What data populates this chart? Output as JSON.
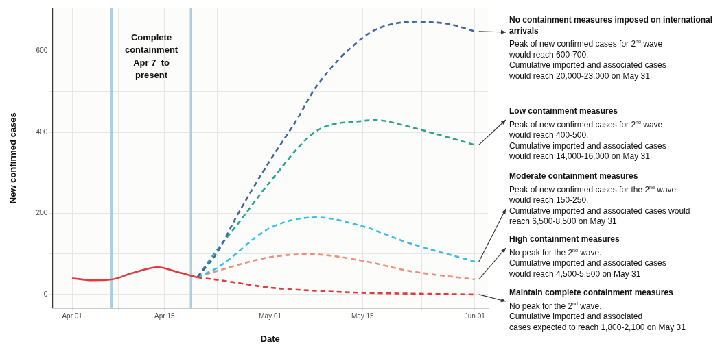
{
  "chart_data": {
    "type": "line",
    "xlabel": "Date",
    "ylabel": "New confirmed cases",
    "xlim": [
      "--03-29",
      "--06-03"
    ],
    "xticks": [
      {
        "value": "--04-01",
        "label": "Apr 01"
      },
      {
        "value": "--04-08",
        "label": null
      },
      {
        "value": "--04-15",
        "label": "Apr 15"
      },
      {
        "value": "--04-23",
        "label": null
      },
      {
        "value": "--05-01",
        "label": "May 01"
      },
      {
        "value": "--05-08",
        "label": null
      },
      {
        "value": "--05-15",
        "label": "May 15"
      },
      {
        "value": "--05-24",
        "label": null
      },
      {
        "value": "--06-01",
        "label": "Jun 01"
      }
    ],
    "ylim": [
      -33,
      706
    ],
    "yticks": [
      0,
      {
        "value": 100,
        "label": null
      },
      200,
      {
        "value": 300,
        "label": null
      },
      400,
      {
        "value": 500,
        "label": null
      },
      600
    ],
    "grid": true,
    "legend": false,
    "marker": "none",
    "ref_lines": [
      {
        "axis": "x",
        "value": "--04-07",
        "color": "#a9d0dc"
      },
      {
        "axis": "x",
        "value": "--04-19",
        "color": "#a9d0dc"
      }
    ],
    "series": [
      {
        "color": "#e0393e",
        "line_style": "solid",
        "x": [
          "--04-01",
          "--04-04",
          "--04-07",
          "--04-10",
          "--04-14",
          "--04-17",
          "--04-20"
        ],
        "values": [
          40,
          35,
          37,
          52,
          67,
          55,
          42
        ]
      },
      {
        "name": "No containment measures imposed on international arrivals",
        "color": "#3d68a0",
        "line_style": "dashed",
        "x": [
          "--04-20",
          "--04-23",
          "--04-26",
          "--05-01",
          "--05-05",
          "--05-08",
          "--05-15",
          "--05-18",
          "--05-23",
          "--05-28",
          "--06-01"
        ],
        "values": [
          43,
          104,
          195,
          331,
          430,
          513,
          633,
          660,
          673,
          667,
          649
        ]
      },
      {
        "name": "Low containment measures",
        "color": "#26a68f",
        "line_style": "dashed",
        "x": [
          "--04-20",
          "--04-23",
          "--04-26",
          "--05-01",
          "--05-08",
          "--05-15",
          "--05-17",
          "--05-22",
          "--05-27",
          "--06-01"
        ],
        "values": [
          43,
          111,
          172,
          278,
          403,
          428,
          430,
          414,
          392,
          369
        ]
      },
      {
        "name": "Moderate containment measures",
        "color": "#3bbbe8",
        "line_style": "dashed",
        "x": [
          "--04-20",
          "--04-23",
          "--05-01",
          "--05-08",
          "--05-15",
          "--05-22",
          "--06-01"
        ],
        "values": [
          43,
          66,
          164,
          190,
          168,
          127,
          81
        ]
      },
      {
        "name": "High containment measures",
        "color": "#f08c78",
        "line_style": "dashed",
        "x": [
          "--04-20",
          "--04-23",
          "--05-01",
          "--05-07",
          "--05-15",
          "--05-22",
          "--06-01"
        ],
        "values": [
          43,
          58,
          92,
          99,
          83,
          58,
          37
        ]
      },
      {
        "name": "Maintain complete containment measures",
        "color": "#e0393e",
        "line_style": "dashed",
        "x": [
          "--04-20",
          "--04-23",
          "--05-01",
          "--05-08",
          "--05-15",
          "--05-22",
          "--06-01"
        ],
        "values": [
          42,
          36,
          17,
          9,
          4,
          2,
          0
        ]
      }
    ],
    "annotations": [
      "Complete\ncontainment\nApr 7  to\npresent",
      "Peak of new confirmed cases for 2$^{nd}$ wave\nwould reach 600-700.\nCumulative imported and associated cases\nwould reach 20,000-23,000 on May 31",
      "Peak of new confirmed cases for 2$^{nd}$ wave\nwould reach 400-500.\nCumulative imported and associated cases\nwould reach 14,000-16,000 on May 31",
      "Peak of new confirmed cases for the 2$^{nd}$ wave\nwould reach 150-250.\nCumulative imported and associated cases would\nreach 6,500-8,500 on May 31",
      "No peak for the 2$^{nd}$ wave.\nCumulative imported and associated cases\nwould reach 4,500-5,500 on May 31",
      "No peak for the 2$^{nd}$ wave.\nCumulative imported and associated\ncases expected to reach 1,800-2,100 on May 31"
    ]
  }
}
